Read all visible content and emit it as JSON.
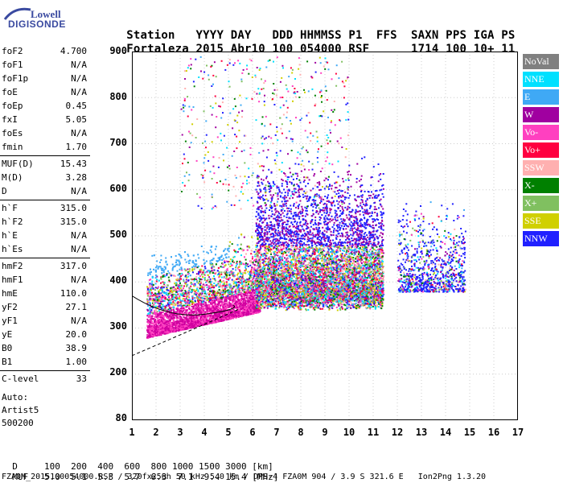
{
  "logo": {
    "top": "Lowell",
    "bottom": "DIGISONDE"
  },
  "header": {
    "row1": [
      "Station",
      "YYYY",
      "DAY",
      "DDD",
      "HHMMSS",
      "P1",
      "FFS",
      "S",
      "AXN",
      "PPS",
      "IGA",
      "PS"
    ],
    "row2": [
      "Fortaleza",
      "2015",
      "Abr10",
      "100",
      "054000",
      "RSF",
      "",
      "1",
      "714",
      "100",
      "10+",
      "11"
    ]
  },
  "params": [
    {
      "label": "foF2",
      "value": "4.700"
    },
    {
      "label": "foF1",
      "value": "N/A"
    },
    {
      "label": "foF1p",
      "value": "N/A"
    },
    {
      "label": "foE",
      "value": "N/A"
    },
    {
      "label": "foEp",
      "value": "0.45"
    },
    {
      "label": "fxI",
      "value": "5.05"
    },
    {
      "label": "foEs",
      "value": "N/A"
    },
    {
      "label": "fmin",
      "value": "1.70"
    },
    {
      "label": "MUF(D)",
      "value": "15.43"
    },
    {
      "label": "M(D)",
      "value": "3.28"
    },
    {
      "label": "D",
      "value": "N/A"
    },
    {
      "label": "h`F",
      "value": "315.0"
    },
    {
      "label": "h`F2",
      "value": "315.0"
    },
    {
      "label": "h`E",
      "value": "N/A"
    },
    {
      "label": "h`Es",
      "value": "N/A"
    },
    {
      "label": "hmF2",
      "value": "317.0"
    },
    {
      "label": "hmF1",
      "value": "N/A"
    },
    {
      "label": "hmE",
      "value": "110.0"
    },
    {
      "label": "yF2",
      "value": "27.1"
    },
    {
      "label": "yF1",
      "value": "N/A"
    },
    {
      "label": "yE",
      "value": "20.0"
    },
    {
      "label": "B0",
      "value": "38.9"
    },
    {
      "label": "B1",
      "value": "1.00"
    },
    {
      "label": "C-level",
      "value": "33"
    }
  ],
  "autoscale": {
    "label": "Auto:",
    "name": "Artist5",
    "version": "500200"
  },
  "legend": [
    {
      "label": "NoVal",
      "color": "#808080"
    },
    {
      "label": "NNE",
      "color": "#00e0ff"
    },
    {
      "label": "E",
      "color": "#3fa9f5"
    },
    {
      "label": "W",
      "color": "#a000a0"
    },
    {
      "label": "Vo-",
      "color": "#ff40c0"
    },
    {
      "label": "Vo+",
      "color": "#ff0040"
    },
    {
      "label": "SSW",
      "color": "#ffb0b0"
    },
    {
      "label": "X-",
      "color": "#008000"
    },
    {
      "label": "X+",
      "color": "#80c060"
    },
    {
      "label": "SSE",
      "color": "#d0d000"
    },
    {
      "label": "NNW",
      "color": "#2020ff"
    }
  ],
  "axes": {
    "yticks": [
      "900",
      "800",
      "700",
      "600",
      "500",
      "400",
      "300",
      "200",
      "80"
    ],
    "xticks": [
      "1",
      "2",
      "3",
      "4",
      "5",
      "6",
      "7",
      "8",
      "9",
      "10",
      "11",
      "12",
      "13",
      "14",
      "15",
      "16",
      "17"
    ]
  },
  "footer": {
    "d_label": "D",
    "d_values": "100  200  400  600  800 1000 1500 3000 [km]",
    "muf_label": "MUF",
    "muf_values": "5.0  5.1  5.3  5.7  6.3  7.1  9.4 15.4 [MHz]",
    "fileline": "FZA0M_2015100054000.RSF / 320fx256h 50 kHz 5.0 km / DPS-4 FZA0M 904 / 3.9 S 321.6 E   Ion2Png 1.3.20"
  }
}
